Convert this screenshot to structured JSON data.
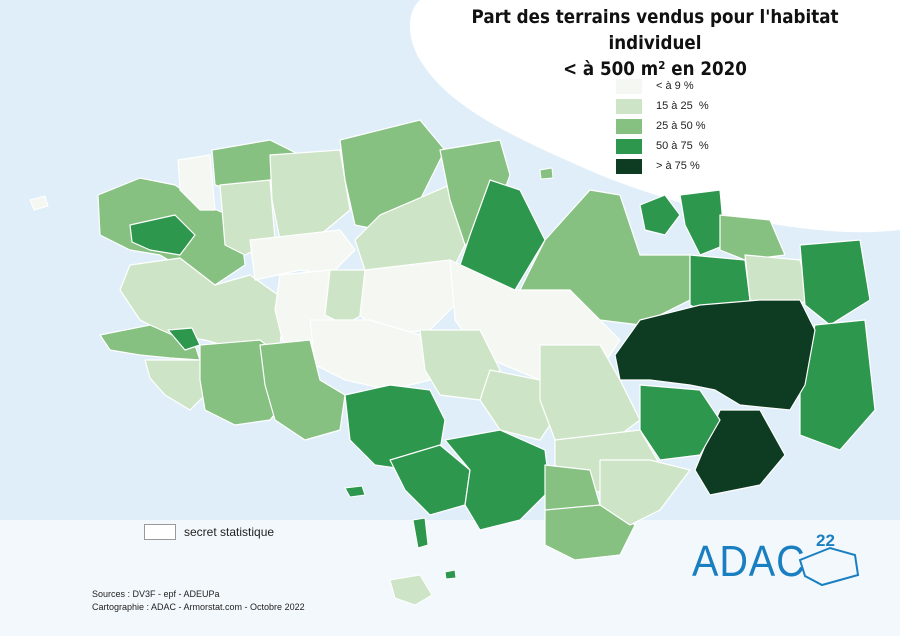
{
  "title_line1": "Part des terrains vendus pour l'habitat individuel",
  "title_line2": "< à 500 m² en 2020",
  "legend": [
    {
      "label": "< à 9 %",
      "color": "#f5f8f2"
    },
    {
      "label": "15 à 25  %",
      "color": "#cde5c6"
    },
    {
      "label": "25 à 50 %",
      "color": "#86c181"
    },
    {
      "label": "50 à 75  %",
      "color": "#2e974e"
    },
    {
      "label": "> à 75 %",
      "color": "#0e3c22"
    }
  ],
  "secret_label": "secret statistique",
  "secret_color": "#ffffff",
  "sources_line1": "Sources : DV3F - epf - ADEUPa",
  "sources_line2": "Cartographie : ADAC - Armorstat.com - Octobre 2022",
  "logo_text": "ADAC",
  "logo_number": "22",
  "colors": {
    "sea": "#dfeef8",
    "border": "#ffffff",
    "logo": "#1a7fc1"
  }
}
